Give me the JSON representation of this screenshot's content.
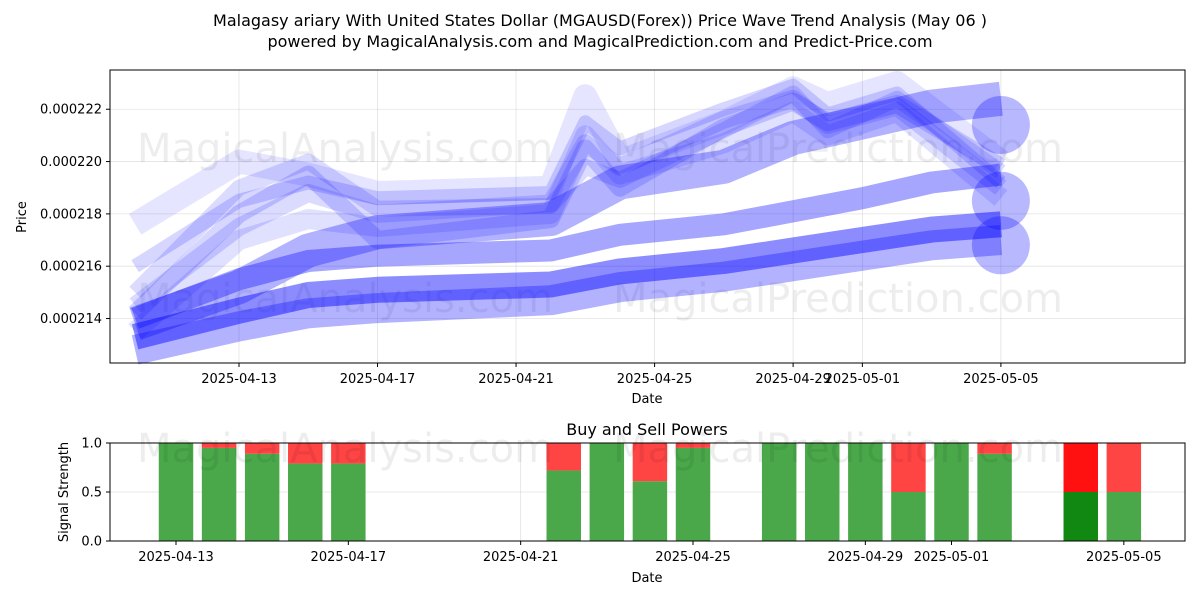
{
  "title_line1": "Malagasy ariary With United States Dollar (MGAUSD(Forex)) Price Wave Trend Analysis (May 06 )",
  "title_line2": "powered by MagicalAnalysis.com and MagicalPrediction.com and Predict-Price.com",
  "watermarks": [
    "MagicalAnalysis.com",
    "MagicalPrediction.com"
  ],
  "chart_data": [
    {
      "type": "line",
      "title": "",
      "xlabel": "Date",
      "ylabel": "Price",
      "x_start": "2025-04-10",
      "x_ticks": [
        "2025-04-13",
        "2025-04-17",
        "2025-04-21",
        "2025-04-25",
        "2025-04-29",
        "2025-05-01",
        "2025-05-05"
      ],
      "y_ticks": [
        0.000214,
        0.000216,
        0.000218,
        0.00022,
        0.000222
      ],
      "y_tick_labels": [
        "0.000214",
        "0.000216",
        "0.000218",
        "0.000220",
        "0.000222"
      ],
      "ylim": [
        0.0002123,
        0.0002235
      ],
      "grid": true,
      "line_color": "#0000ff",
      "series": [
        {
          "x": [
            "2025-04-10",
            "2025-04-13",
            "2025-04-15",
            "2025-04-17",
            "2025-04-22",
            "2025-04-24",
            "2025-04-27",
            "2025-04-29",
            "2025-05-01",
            "2025-05-03",
            "2025-05-05"
          ],
          "values": [
            0.0002133,
            0.0002143,
            0.0002149,
            0.0002151,
            0.0002153,
            0.0002158,
            0.0002162,
            0.0002166,
            0.000217,
            0.0002174,
            0.0002176
          ]
        },
        {
          "x": [
            "2025-04-10",
            "2025-04-13",
            "2025-04-15",
            "2025-04-17",
            "2025-04-22",
            "2025-04-24",
            "2025-04-27",
            "2025-04-29",
            "2025-05-01",
            "2025-05-03",
            "2025-05-05"
          ],
          "values": [
            0.0002128,
            0.0002137,
            0.0002142,
            0.0002144,
            0.0002147,
            0.0002152,
            0.0002156,
            0.000216,
            0.0002164,
            0.0002168,
            0.000217
          ]
        },
        {
          "x": [
            "2025-04-10",
            "2025-04-13",
            "2025-04-15",
            "2025-04-17",
            "2025-04-22",
            "2025-04-24",
            "2025-04-27",
            "2025-04-29",
            "2025-05-01",
            "2025-05-03",
            "2025-05-05"
          ],
          "values": [
            0.000214,
            0.0002155,
            0.0002162,
            0.0002164,
            0.0002166,
            0.0002172,
            0.0002176,
            0.0002181,
            0.0002186,
            0.0002192,
            0.0002195
          ]
        },
        {
          "x": [
            "2025-04-10",
            "2025-04-13",
            "2025-04-15",
            "2025-04-17",
            "2025-04-22",
            "2025-04-24",
            "2025-04-27",
            "2025-04-29",
            "2025-05-01",
            "2025-05-03",
            "2025-05-05"
          ],
          "values": [
            0.0002138,
            0.0002152,
            0.0002166,
            0.0002173,
            0.0002178,
            0.0002192,
            0.0002198,
            0.0002209,
            0.0002215,
            0.0002221,
            0.0002224
          ]
        },
        {
          "x": [
            "2025-04-10",
            "2025-04-13",
            "2025-04-15",
            "2025-04-17",
            "2025-04-22",
            "2025-04-23",
            "2025-04-24",
            "2025-04-27",
            "2025-04-29",
            "2025-04-30",
            "2025-05-02",
            "2025-05-05"
          ],
          "values": [
            0.0002142,
            0.000218,
            0.0002195,
            0.000217,
            0.0002178,
            0.0002205,
            0.000219,
            0.0002213,
            0.0002223,
            0.0002215,
            0.0002222,
            0.0002198
          ]
        },
        {
          "x": [
            "2025-04-10",
            "2025-04-13",
            "2025-04-15",
            "2025-04-17",
            "2025-04-22",
            "2025-04-23",
            "2025-04-24",
            "2025-04-27",
            "2025-04-29",
            "2025-04-30",
            "2025-05-02",
            "2025-05-05"
          ],
          "values": [
            0.000215,
            0.000219,
            0.00022,
            0.0002182,
            0.0002183,
            0.0002198,
            0.0002193,
            0.0002212,
            0.0002226,
            0.0002212,
            0.0002224,
            0.0002196
          ]
        },
        {
          "x": [
            "2025-04-10",
            "2025-04-13",
            "2025-04-15",
            "2025-04-17",
            "2025-04-22",
            "2025-04-23",
            "2025-04-24",
            "2025-04-27",
            "2025-04-29",
            "2025-04-30",
            "2025-05-02",
            "2025-05-05"
          ],
          "values": [
            0.0002135,
            0.000217,
            0.0002178,
            0.0002175,
            0.000218,
            0.000221,
            0.0002195,
            0.0002207,
            0.0002219,
            0.000221,
            0.0002219,
            0.0002186
          ]
        },
        {
          "x": [
            "2025-04-10",
            "2025-04-13",
            "2025-04-15",
            "2025-04-17",
            "2025-04-22",
            "2025-04-23",
            "2025-04-24",
            "2025-04-27",
            "2025-04-29",
            "2025-04-30",
            "2025-05-02",
            "2025-05-05"
          ],
          "values": [
            0.0002176,
            0.00022,
            0.0002195,
            0.0002188,
            0.000219,
            0.0002225,
            0.00022,
            0.0002215,
            0.0002228,
            0.0002222,
            0.000223,
            0.00022
          ]
        },
        {
          "x": [
            "2025-04-10",
            "2025-04-13",
            "2025-04-15",
            "2025-04-17",
            "2025-04-22",
            "2025-04-23",
            "2025-04-24",
            "2025-04-27",
            "2025-04-29",
            "2025-04-30",
            "2025-05-02",
            "2025-05-05"
          ],
          "values": [
            0.000216,
            0.0002185,
            0.0002192,
            0.0002186,
            0.0002188,
            0.0002215,
            0.0002205,
            0.000222,
            0.0002229,
            0.0002218,
            0.0002226,
            0.0002192
          ]
        },
        {
          "x": [
            "2025-04-10",
            "2025-04-13",
            "2025-04-15",
            "2025-04-17",
            "2025-04-22",
            "2025-04-23",
            "2025-04-24",
            "2025-04-27",
            "2025-04-29",
            "2025-04-30",
            "2025-05-02",
            "2025-05-05"
          ],
          "values": [
            0.0002145,
            0.0002175,
            0.0002188,
            0.000218,
            0.0002184,
            0.0002207,
            0.0002198,
            0.0002216,
            0.0002224,
            0.0002214,
            0.0002221,
            0.000219
          ]
        }
      ],
      "endpoint_circles": [
        0.0002214,
        0.0002185,
        0.0002168
      ]
    },
    {
      "type": "bar",
      "title": "Buy and Sell Powers",
      "xlabel": "Date",
      "ylabel": "Signal Strength",
      "x_ticks": [
        "2025-04-13",
        "2025-04-17",
        "2025-04-21",
        "2025-04-25",
        "2025-04-29",
        "2025-05-01",
        "2025-05-05"
      ],
      "y_ticks": [
        0.0,
        0.5,
        1.0
      ],
      "y_tick_labels": [
        "0.0",
        "0.5",
        "1.0"
      ],
      "ylim": [
        0,
        1
      ],
      "grid": true,
      "buy_color": "#4aa84a",
      "sell_color": "#ff4444",
      "buy_color_strong": "#118811",
      "sell_color_strong": "#ff1111",
      "bars": [
        {
          "date": "2025-04-13",
          "buy": 1.0
        },
        {
          "date": "2025-04-14",
          "buy": 0.95
        },
        {
          "date": "2025-04-15",
          "buy": 0.89
        },
        {
          "date": "2025-04-16",
          "buy": 0.79
        },
        {
          "date": "2025-04-17",
          "buy": 0.79
        },
        {
          "date": "2025-04-22",
          "buy": 0.72
        },
        {
          "date": "2025-04-23",
          "buy": 1.0
        },
        {
          "date": "2025-04-24",
          "buy": 0.61
        },
        {
          "date": "2025-04-25",
          "buy": 0.95
        },
        {
          "date": "2025-04-27",
          "buy": 1.0
        },
        {
          "date": "2025-04-28",
          "buy": 1.0
        },
        {
          "date": "2025-04-29",
          "buy": 1.0
        },
        {
          "date": "2025-04-30",
          "buy": 0.5
        },
        {
          "date": "2025-05-01",
          "buy": 1.0
        },
        {
          "date": "2025-05-02",
          "buy": 0.89
        },
        {
          "date": "2025-05-04",
          "buy": 0.5,
          "strong": true
        },
        {
          "date": "2025-05-05",
          "buy": 0.5
        }
      ]
    }
  ]
}
